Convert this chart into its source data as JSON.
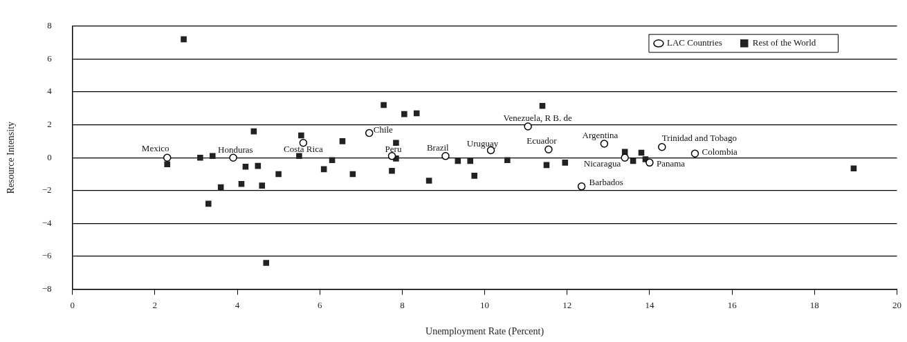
{
  "chart_data": {
    "type": "scatter",
    "xlabel": "Unemployment Rate (Percent)",
    "ylabel": "Resource Intensity",
    "xlim": [
      0,
      20
    ],
    "xticks": [
      0,
      2,
      4,
      6,
      8,
      10,
      12,
      14,
      16,
      18,
      20
    ],
    "ylim": [
      -8,
      8
    ],
    "yticks": [
      -8,
      -6,
      -4,
      -2,
      0,
      2,
      4,
      6,
      8
    ],
    "grid": "y",
    "legend": "top right",
    "series": [
      {
        "name": "LAC Countries",
        "color": "#000000",
        "marker": "circle",
        "x": [
          2.3,
          3.9,
          5.6,
          7.2,
          7.75,
          9.05,
          10.15,
          11.05,
          11.55,
          12.9,
          14.3,
          15.1,
          13.4,
          14.0,
          12.35
        ],
        "values": [
          0,
          0,
          0.9,
          1.5,
          0.1,
          0.1,
          0.45,
          1.9,
          0.5,
          0.85,
          0.65,
          0.25,
          0,
          -0.3,
          -1.75
        ]
      },
      {
        "name": "Rest of the World",
        "color": "#222222",
        "marker": "square",
        "x": [
          2.7,
          2.3,
          3.1,
          3.4,
          3.6,
          3.3,
          4.2,
          4.4,
          4.5,
          4.1,
          4.6,
          4.7,
          5.0,
          5.55,
          5.5,
          6.55,
          6.3,
          6.1,
          6.8,
          7.55,
          8.05,
          8.35,
          7.85,
          7.85,
          7.75,
          8.65,
          9.35,
          9.65,
          9.75,
          10.55,
          11.4,
          11.5,
          11.95,
          13.4,
          13.8,
          13.6,
          13.9,
          18.95
        ],
        "values": [
          7.2,
          -0.4,
          0,
          0.1,
          -1.8,
          -2.8,
          -0.55,
          1.6,
          -0.5,
          -1.6,
          -1.7,
          -6.4,
          -1.0,
          1.35,
          0.1,
          1.0,
          -0.15,
          -0.7,
          -1.0,
          3.2,
          2.65,
          2.7,
          0.9,
          -0.05,
          -0.8,
          -1.4,
          -0.2,
          -0.2,
          -1.1,
          -0.15,
          3.15,
          -0.45,
          -0.3,
          0.35,
          0.3,
          -0.2,
          -0.1,
          -0.65
        ]
      }
    ],
    "annotations": [
      {
        "text": "Mexico",
        "x": 2.3,
        "y": 0
      },
      {
        "text": "Honduras",
        "x": 3.9,
        "y": 0
      },
      {
        "text": "Costa Rica",
        "x": 5.6,
        "y": 0.9
      },
      {
        "text": "Chile",
        "x": 7.2,
        "y": 1.5
      },
      {
        "text": "Peru",
        "x": 7.75,
        "y": 0.1
      },
      {
        "text": "Brazil",
        "x": 9.05,
        "y": 0.1
      },
      {
        "text": "Uruguay",
        "x": 10.15,
        "y": 0.45
      },
      {
        "text": "Venezuela, R B. de",
        "x": 11.05,
        "y": 1.9
      },
      {
        "text": "Ecuador",
        "x": 11.55,
        "y": 0.5
      },
      {
        "text": "Argentina",
        "x": 12.9,
        "y": 0.85
      },
      {
        "text": "Trinidad and Tobago",
        "x": 14.3,
        "y": 0.65
      },
      {
        "text": "Colombia",
        "x": 15.1,
        "y": 0.25
      },
      {
        "text": "Nicaragua",
        "x": 13.4,
        "y": 0
      },
      {
        "text": "Panama",
        "x": 14.0,
        "y": -0.3
      },
      {
        "text": "Barbados",
        "x": 12.35,
        "y": -1.75
      }
    ]
  }
}
